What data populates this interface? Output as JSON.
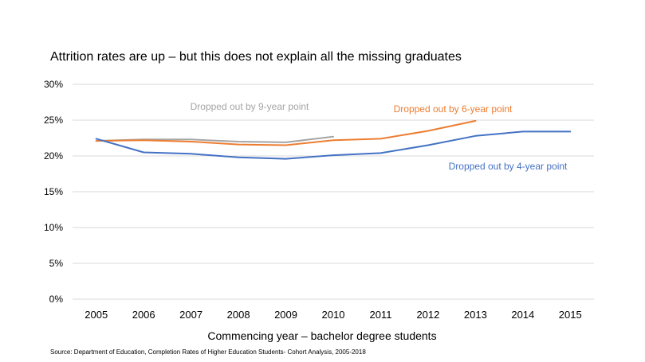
{
  "chart_data": {
    "type": "line",
    "title": "Attrition rates are up – but this does not explain all the missing graduates",
    "xlabel": "Commencing year – bachelor degree students",
    "ylabel": "",
    "source": "Source: Department of Education, Completion Rates of Higher Education Students- Cohort Analysis, 2005-2018",
    "categories": [
      "2005",
      "2006",
      "2007",
      "2008",
      "2009",
      "2010",
      "2011",
      "2012",
      "2013",
      "2014",
      "2015"
    ],
    "y_ticks": [
      "0%",
      "5%",
      "10%",
      "15%",
      "20%",
      "25%",
      "30%"
    ],
    "ylim": [
      0,
      30
    ],
    "grid": true,
    "series": [
      {
        "name": "Dropped out by 9-year point",
        "color": "#a5a5a5",
        "values": [
          22.1,
          22.3,
          22.3,
          22.0,
          21.9,
          22.7,
          null,
          null,
          null,
          null,
          null
        ]
      },
      {
        "name": "Dropped out by 6-year point",
        "color": "#ed7d31",
        "values": [
          22.1,
          22.2,
          22.0,
          21.6,
          21.5,
          22.2,
          22.4,
          23.5,
          24.9,
          null,
          null
        ]
      },
      {
        "name": "Dropped out by 4-year point",
        "color": "#4472c4",
        "values": [
          22.4,
          20.5,
          20.3,
          19.8,
          19.6,
          20.1,
          20.4,
          21.5,
          22.8,
          23.4,
          23.4
        ]
      }
    ]
  }
}
